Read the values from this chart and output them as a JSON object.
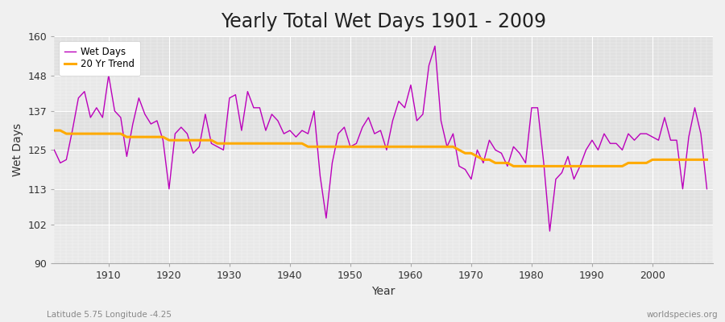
{
  "title": "Yearly Total Wet Days 1901 - 2009",
  "xlabel": "Year",
  "ylabel": "Wet Days",
  "subtitle": "Latitude 5.75 Longitude -4.25",
  "watermark": "worldspecies.org",
  "years": [
    1901,
    1902,
    1903,
    1904,
    1905,
    1906,
    1907,
    1908,
    1909,
    1910,
    1911,
    1912,
    1913,
    1914,
    1915,
    1916,
    1917,
    1918,
    1919,
    1920,
    1921,
    1922,
    1923,
    1924,
    1925,
    1926,
    1927,
    1928,
    1929,
    1930,
    1931,
    1932,
    1933,
    1934,
    1935,
    1936,
    1937,
    1938,
    1939,
    1940,
    1941,
    1942,
    1943,
    1944,
    1945,
    1946,
    1947,
    1948,
    1949,
    1950,
    1951,
    1952,
    1953,
    1954,
    1955,
    1956,
    1957,
    1958,
    1959,
    1960,
    1961,
    1962,
    1963,
    1964,
    1965,
    1966,
    1967,
    1968,
    1969,
    1970,
    1971,
    1972,
    1973,
    1974,
    1975,
    1976,
    1977,
    1978,
    1979,
    1980,
    1981,
    1982,
    1983,
    1984,
    1985,
    1986,
    1987,
    1988,
    1989,
    1990,
    1991,
    1992,
    1993,
    1994,
    1995,
    1996,
    1997,
    1998,
    1999,
    2000,
    2001,
    2002,
    2003,
    2004,
    2005,
    2006,
    2007,
    2008,
    2009
  ],
  "wet_days": [
    125,
    121,
    122,
    131,
    141,
    143,
    135,
    138,
    135,
    148,
    137,
    135,
    123,
    133,
    141,
    136,
    133,
    134,
    128,
    113,
    130,
    132,
    130,
    124,
    126,
    136,
    127,
    126,
    125,
    141,
    142,
    131,
    143,
    138,
    138,
    131,
    136,
    134,
    130,
    131,
    129,
    131,
    130,
    137,
    117,
    104,
    121,
    130,
    132,
    126,
    127,
    132,
    135,
    130,
    131,
    125,
    134,
    140,
    138,
    145,
    134,
    136,
    151,
    157,
    134,
    126,
    130,
    120,
    119,
    116,
    125,
    121,
    128,
    125,
    124,
    120,
    126,
    124,
    121,
    138,
    138,
    121,
    100,
    116,
    118,
    123,
    116,
    120,
    125,
    128,
    125,
    130,
    127,
    127,
    125,
    130,
    128,
    130,
    130,
    129,
    128,
    135,
    128,
    128,
    113,
    129,
    138,
    130,
    113
  ],
  "trend": [
    131,
    131,
    130,
    130,
    130,
    130,
    130,
    130,
    130,
    130,
    130,
    130,
    129,
    129,
    129,
    129,
    129,
    129,
    129,
    128,
    128,
    128,
    128,
    128,
    128,
    128,
    128,
    127,
    127,
    127,
    127,
    127,
    127,
    127,
    127,
    127,
    127,
    127,
    127,
    127,
    127,
    127,
    126,
    126,
    126,
    126,
    126,
    126,
    126,
    126,
    126,
    126,
    126,
    126,
    126,
    126,
    126,
    126,
    126,
    126,
    126,
    126,
    126,
    126,
    126,
    126,
    126,
    125,
    124,
    124,
    123,
    122,
    122,
    121,
    121,
    121,
    120,
    120,
    120,
    120,
    120,
    120,
    120,
    120,
    120,
    120,
    120,
    120,
    120,
    120,
    120,
    120,
    120,
    120,
    120,
    121,
    121,
    121,
    121,
    122,
    122,
    122,
    122,
    122,
    122,
    122,
    122,
    122,
    122
  ],
  "wet_days_color": "#bb00bb",
  "trend_color": "#ffaa00",
  "bg_color": "#f0f0f0",
  "plot_bg_color": "#ebebeb",
  "band_colors": [
    "#e8e8e8",
    "#e0e0e0"
  ],
  "ylim": [
    90,
    160
  ],
  "yticks": [
    90,
    102,
    113,
    125,
    137,
    148,
    160
  ],
  "xlim": [
    1901,
    2010
  ],
  "xticks": [
    1910,
    1920,
    1930,
    1940,
    1950,
    1960,
    1970,
    1980,
    1990,
    2000
  ],
  "title_fontsize": 17,
  "label_fontsize": 10,
  "tick_fontsize": 9
}
